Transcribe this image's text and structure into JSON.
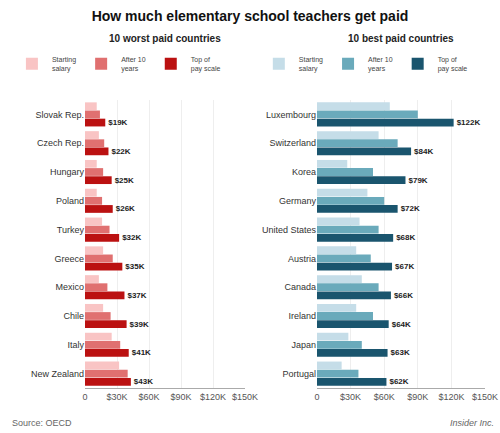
{
  "title": "How much elementary school teachers get paid",
  "annotations": [
    "Source: OECD",
    "Insider Inc."
  ],
  "chart_data": [
    {
      "type": "bar",
      "orientation": "horizontal",
      "subtitle": "10 worst paid countries",
      "categories": [
        "Slovak Rep.",
        "Czech Rep.",
        "Hungary",
        "Poland",
        "Turkey",
        "Greece",
        "Mexico",
        "Chile",
        "Italy",
        "New Zealand"
      ],
      "series": [
        {
          "name": "Starting\nsalary",
          "color": "#f9c4c4",
          "values": [
            11000,
            13000,
            11000,
            11000,
            16000,
            17000,
            13000,
            17000,
            25000,
            32000
          ]
        },
        {
          "name": "After 10\nyears",
          "color": "#e07070",
          "values": [
            14000,
            18000,
            17000,
            16000,
            23000,
            26000,
            21000,
            24000,
            33000,
            40000
          ]
        },
        {
          "name": "Top of\npay scale",
          "color": "#bb1111",
          "values": [
            19000,
            22000,
            25000,
            26000,
            32000,
            35000,
            37000,
            39000,
            41000,
            43000
          ],
          "value_labels": [
            "$19K",
            "$22K",
            "$25K",
            "$26K",
            "$32K",
            "$35K",
            "$37K",
            "$39K",
            "$41K",
            "$43K"
          ],
          "data_labels": true
        }
      ],
      "xlim": [
        0,
        150000
      ],
      "xticks": [
        0,
        {
          "value": 30000,
          "label": "$30K"
        },
        {
          "value": 60000,
          "label": "$60K"
        },
        {
          "value": 90000,
          "label": "$90K"
        },
        {
          "value": 120000,
          "label": "$120K"
        },
        {
          "value": 150000,
          "label": "$150K"
        }
      ],
      "grid": true
    },
    {
      "type": "bar",
      "orientation": "horizontal",
      "subtitle": "10 best paid countries",
      "categories": [
        "Luxembourg",
        "Switzerland",
        "Korea",
        "Germany",
        "United States",
        "Austria",
        "Canada",
        "Ireland",
        "Japan",
        "Portugal"
      ],
      "series": [
        {
          "name": "Starting\nsalary",
          "color": "#c5dde8",
          "values": [
            65000,
            55000,
            27000,
            45000,
            38000,
            35000,
            40000,
            35000,
            28000,
            22000
          ]
        },
        {
          "name": "After 10\nyears",
          "color": "#6aaabb",
          "values": [
            90000,
            72000,
            50000,
            60000,
            55000,
            48000,
            55000,
            50000,
            40000,
            37000
          ]
        },
        {
          "name": "Top of\npay scale",
          "color": "#1a556e",
          "values": [
            122000,
            84000,
            79000,
            72000,
            68000,
            67000,
            66000,
            64000,
            63000,
            62000
          ],
          "value_labels": [
            "$122K",
            "$84K",
            "$79K",
            "$72K",
            "$68K",
            "$67K",
            "$66K",
            "$64K",
            "$63K",
            "$62K"
          ],
          "data_labels": true
        }
      ],
      "xlim": [
        0,
        150000
      ],
      "xticks": [
        0,
        {
          "value": 30000,
          "label": "$30K"
        },
        {
          "value": 60000,
          "label": "$60K"
        },
        {
          "value": 90000,
          "label": "$90K"
        },
        {
          "value": 120000,
          "label": "$120K"
        },
        {
          "value": 150000,
          "label": "$150K"
        }
      ],
      "grid": true
    }
  ]
}
